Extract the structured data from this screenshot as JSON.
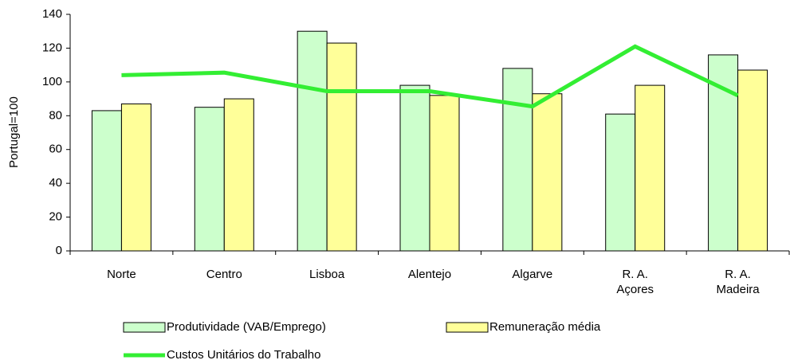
{
  "chart_data": {
    "type": "bar",
    "ylabel": "Portugal=100",
    "categories": [
      "Norte",
      "Centro",
      "Lisboa",
      "Alentejo",
      "Algarve",
      "R. A.\nAçores",
      "R. A.\nMadeira"
    ],
    "series": [
      {
        "name": "Produtividade (VAB/Emprego)",
        "type": "bar",
        "color": "#ccffcc",
        "values": [
          83,
          85,
          130,
          98,
          108,
          81,
          116
        ]
      },
      {
        "name": "Remuneração média",
        "type": "bar",
        "color": "#ffff99",
        "values": [
          87,
          90,
          123,
          92,
          93,
          98,
          107
        ]
      },
      {
        "name": "Custos Unitários do Trabalho",
        "type": "line",
        "color": "#33ee33",
        "values": [
          104,
          105.5,
          94.5,
          94.5,
          85.5,
          121,
          92
        ]
      }
    ],
    "ylim": [
      0,
      140
    ],
    "yticks": [
      0,
      20,
      40,
      60,
      80,
      100,
      120,
      140
    ],
    "grid": false
  }
}
